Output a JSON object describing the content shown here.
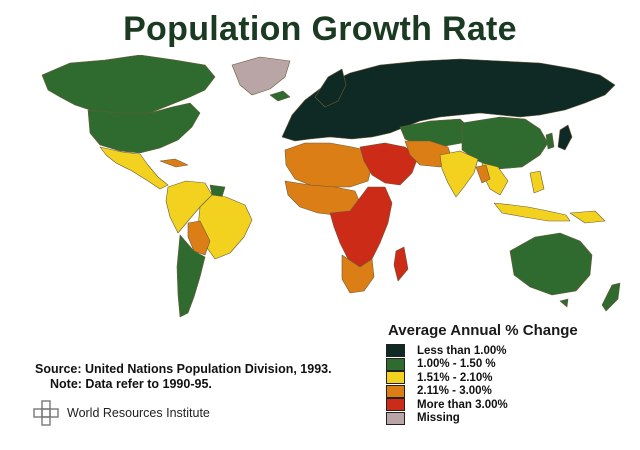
{
  "title": "Population Growth Rate",
  "legend": {
    "title": "Average Annual % Change",
    "items": [
      {
        "label": "Less than 1.00%",
        "color": "#0f2a24"
      },
      {
        "label": "1.00% - 1.50 %",
        "color": "#2f6b2f"
      },
      {
        "label": "1.51% - 2.10%",
        "color": "#f2d21e"
      },
      {
        "label": "2.11% - 3.00%",
        "color": "#dc7e16"
      },
      {
        "label": "More than 3.00%",
        "color": "#cc2b17"
      },
      {
        "label": "Missing",
        "color": "#b9a5a5"
      }
    ]
  },
  "source": {
    "line1": "Source: United Nations Population Division, 1993.",
    "line2": "Note: Data refer to 1990-95."
  },
  "credit": {
    "text": "World Resources Institute",
    "icon": "wri-logo-icon"
  }
}
